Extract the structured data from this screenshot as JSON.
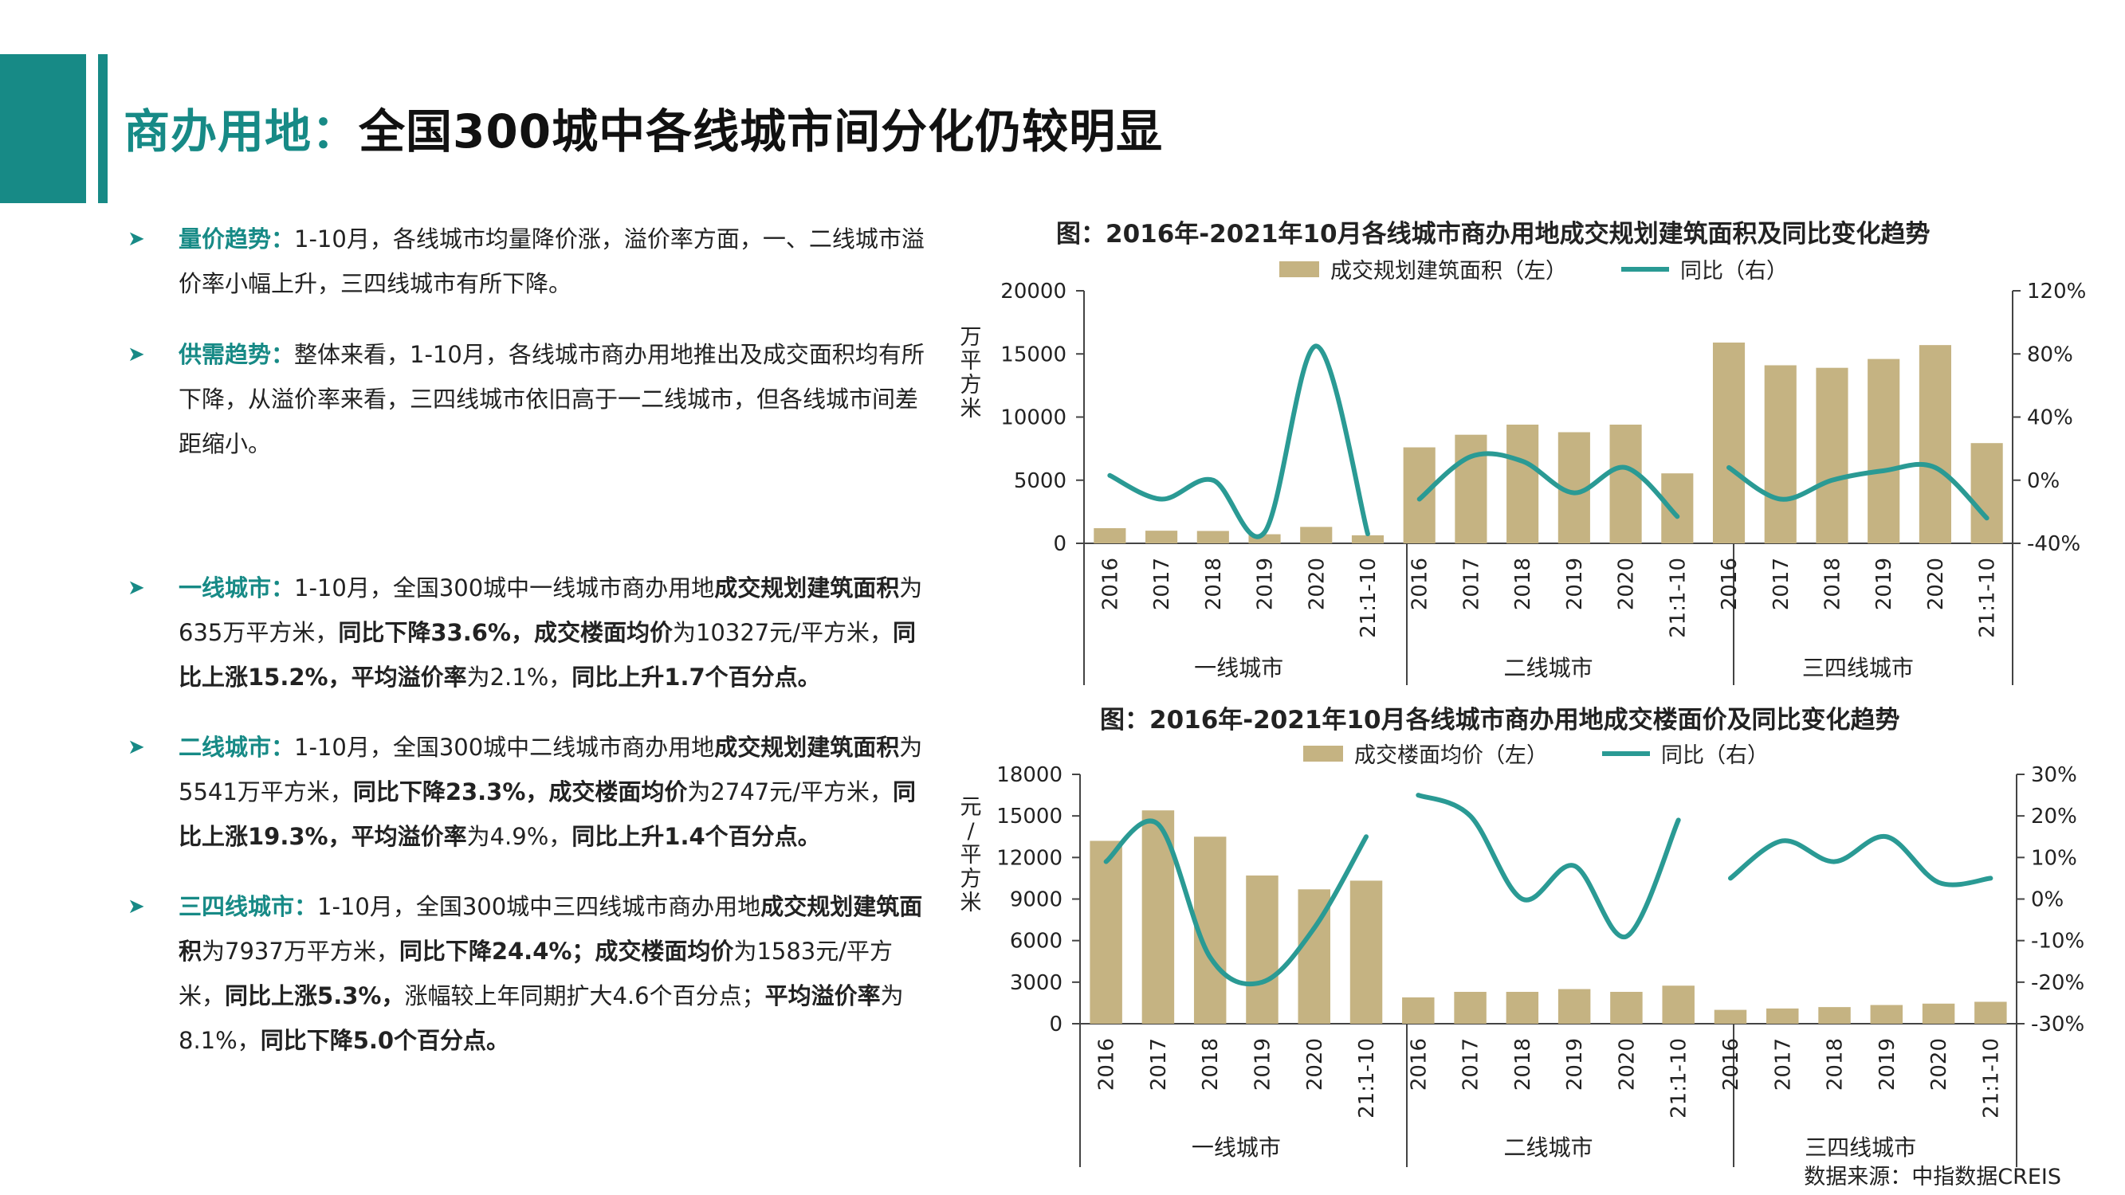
{
  "header": {
    "title_accent": "商办用地：",
    "title_main": "全国300城中各线城市间分化仍较明显"
  },
  "bullets": [
    {
      "keyword": "量价趋势：",
      "segments": [
        {
          "t": "1-10月，各线城市均量降价涨，溢价率方面，一、二线城市溢价率小幅上升，三四线城市有所下降。",
          "b": false
        }
      ]
    },
    {
      "keyword": "供需趋势：",
      "segments": [
        {
          "t": "整体来看，1-10月，各线城市商办用地推出及成交面积均有所下降，从溢价率来看，三四线城市依旧高于一二线城市，但各线城市间差距缩小。",
          "b": false
        }
      ]
    },
    {
      "keyword": "一线城市：",
      "segments": [
        {
          "t": "1-10月，全国300城中一线城市商办用地",
          "b": false
        },
        {
          "t": "成交规划建筑面积",
          "b": true
        },
        {
          "t": "为635万平方米，",
          "b": false
        },
        {
          "t": "同比下降33.6%，成交楼面均价",
          "b": true
        },
        {
          "t": "为10327元/平方米，",
          "b": false
        },
        {
          "t": "同比上涨15.2%，平均溢价率",
          "b": true
        },
        {
          "t": "为2.1%，",
          "b": false
        },
        {
          "t": "同比上升1.7个百分点。",
          "b": true
        }
      ]
    },
    {
      "keyword": "二线城市：",
      "segments": [
        {
          "t": "1-10月，全国300城中二线城市商办用地",
          "b": false
        },
        {
          "t": "成交规划建筑面积",
          "b": true
        },
        {
          "t": "为5541万平方米，",
          "b": false
        },
        {
          "t": "同比下降23.3%，成交楼面均价",
          "b": true
        },
        {
          "t": "为2747元/平方米，",
          "b": false
        },
        {
          "t": "同比上涨19.3%，平均溢价率",
          "b": true
        },
        {
          "t": "为4.9%，",
          "b": false
        },
        {
          "t": "同比上升1.4个百分点。",
          "b": true
        }
      ]
    },
    {
      "keyword": "三四线城市：",
      "segments": [
        {
          "t": "1-10月，全国300城中三四线城市商办用地",
          "b": false
        },
        {
          "t": "成交规划建筑面积",
          "b": true
        },
        {
          "t": "为7937万平方米，",
          "b": false
        },
        {
          "t": "同比下降24.4%；成交楼面均价",
          "b": true
        },
        {
          "t": "为1583元/平方米，",
          "b": false
        },
        {
          "t": "同比上涨5.3%，",
          "b": true
        },
        {
          "t": "涨幅较上年同期扩大4.6个百分点；",
          "b": false
        },
        {
          "t": "平均溢价率",
          "b": true
        },
        {
          "t": "为8.1%，",
          "b": false
        },
        {
          "t": "同比下降5.0个百分点。",
          "b": true
        }
      ]
    }
  ],
  "chart_data": [
    {
      "type": "bar",
      "title": "图：2016年-2021年10月各线城市商办用地成交规划建筑面积及同比变化趋势",
      "legend": {
        "bar": "成交规划建筑面积（左）",
        "line": "同比（右）"
      },
      "ylabel": "万平方米",
      "ylim": [
        0,
        20000
      ],
      "yticks": [
        0,
        5000,
        10000,
        15000,
        20000
      ],
      "y2lim": [
        -40,
        120
      ],
      "y2ticks": [
        "-40%",
        "0%",
        "40%",
        "80%",
        "120%"
      ],
      "categories": [
        "2016",
        "2017",
        "2018",
        "2019",
        "2020",
        "21:1-10"
      ],
      "groups": [
        {
          "name": "一线城市",
          "values": [
            1200,
            1000,
            980,
            720,
            1300,
            635
          ],
          "yoy": [
            3,
            -12,
            0,
            -33,
            85,
            -34
          ]
        },
        {
          "name": "二线城市",
          "values": [
            7600,
            8600,
            9400,
            8800,
            9400,
            5541
          ],
          "yoy": [
            -12,
            15,
            12,
            -8,
            8,
            -23
          ]
        },
        {
          "name": "三四线城市",
          "values": [
            15900,
            14100,
            13900,
            14600,
            15700,
            7937
          ],
          "yoy": [
            8,
            -12,
            0,
            6,
            8,
            -24
          ]
        }
      ]
    },
    {
      "type": "bar",
      "title": "图：2016年-2021年10月各线城市商办用地成交楼面价及同比变化趋势",
      "legend": {
        "bar": "成交楼面均价（左）",
        "line": "同比（右）"
      },
      "ylabel": "元/平方米",
      "ylim": [
        0,
        18000
      ],
      "yticks": [
        0,
        3000,
        6000,
        9000,
        12000,
        15000,
        18000
      ],
      "y2lim": [
        -30,
        30
      ],
      "y2ticks": [
        "-30%",
        "-20%",
        "-10%",
        "0%",
        "10%",
        "20%",
        "30%"
      ],
      "categories": [
        "2016",
        "2017",
        "2018",
        "2019",
        "2020",
        "21:1-10"
      ],
      "groups": [
        {
          "name": "一线城市",
          "values": [
            13200,
            15400,
            13500,
            10700,
            9700,
            10327
          ],
          "yoy": [
            9,
            18,
            -14,
            -20,
            -7,
            15
          ]
        },
        {
          "name": "二线城市",
          "values": [
            1900,
            2300,
            2300,
            2500,
            2300,
            2747
          ],
          "yoy": [
            25,
            20,
            0,
            8,
            -9,
            19
          ]
        },
        {
          "name": "三四线城市",
          "values": [
            1000,
            1100,
            1200,
            1350,
            1450,
            1583
          ],
          "yoy": [
            5,
            14,
            9,
            15,
            4,
            5
          ]
        }
      ]
    }
  ],
  "source": "数据来源：中指数据CREIS"
}
